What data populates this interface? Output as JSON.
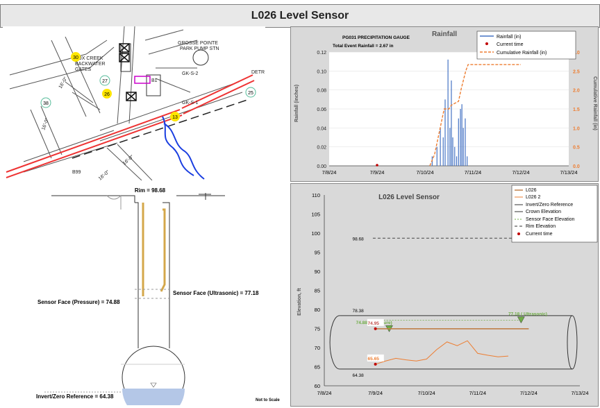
{
  "page_title": "L026 Level Sensor",
  "map": {
    "labels": {
      "fox_creek": "FOX CREEK",
      "backwater": "BACKWATER",
      "gates": "GATES",
      "grosse_pointe": "GROSSE POINTE",
      "park_pump_stn": "PARK PUMP STN",
      "gk_s2": "GK-S-2",
      "gk_s1": "GK-S-1",
      "b1": "B1",
      "b99": "B99",
      "detr": "DETR",
      "pipe16a": "16'-0\"",
      "pipe16b": "16'-0\"",
      "pipe16c": "16'-0\"",
      "pipe16d": "16'-0\""
    },
    "markers": [
      "30",
      "27",
      "26",
      "13",
      "38",
      "25"
    ]
  },
  "diagram": {
    "rim": "Rim = 98.68",
    "sensor_pressure": "Sensor Face (Pressure) = 74.88",
    "sensor_ultrasonic": "Sensor Face (Ultrasonic) = 77.18",
    "invert": "Invert/Zero Reference = 64.38",
    "not_to_scale": "Not to Scale"
  },
  "rain_chart": {
    "title": "Rainfall",
    "gauge_title": "PG031 PRECIPITATION GAUGE",
    "total_text": "Total Event Rainfall = 2.67 in",
    "ylabel": "Rainfall (inches)",
    "y2label": "Cumulative Rainfall (in)",
    "xlabels": [
      "7/8/24",
      "7/9/24",
      "7/10/24",
      "7/11/24",
      "7/12/24",
      "7/13/24"
    ],
    "yticks": [
      "0.00",
      "0.02",
      "0.04",
      "0.06",
      "0.08",
      "0.10",
      "0.12"
    ],
    "y2ticks": [
      "0.0",
      "0.5",
      "1.0",
      "1.5",
      "2.0",
      "2.5",
      "3.0"
    ],
    "legend": [
      "Rainfall (in)",
      "Current time",
      "Cumulative Rainfall (in)"
    ],
    "colors": {
      "rain": "#4472c4",
      "cumulative": "#ed7d31",
      "current": "#c00000"
    }
  },
  "level_chart": {
    "title": "L026 Level Sensor",
    "ylabel": "Elevation, ft",
    "xlabels": [
      "7/8/24",
      "7/9/24",
      "7/10/24",
      "7/11/24",
      "7/12/24",
      "7/13/24"
    ],
    "yticks": [
      "60",
      "65",
      "70",
      "75",
      "80",
      "85",
      "90",
      "95",
      "100",
      "105",
      "110"
    ],
    "legend": [
      "L026",
      "L026 2",
      "Invert/Zero Reference",
      "Crown Elevation",
      "Sensor Face Elevation",
      "Rim Elevation",
      "Current time"
    ],
    "annotations": {
      "rim": "98.68",
      "crown": "78.38",
      "invert": "64.38",
      "pressure": "74.88 ( Pressure)",
      "ultrasonic": "77.18 ( Ultrasonic)",
      "current_l026": "74.95",
      "current_l026_2": "65.65"
    },
    "colors": {
      "l026": "#c0804a",
      "l026_2": "#ed7d31",
      "sensor": "#70ad47",
      "current": "#c00000"
    }
  },
  "chart_data": [
    {
      "type": "bar",
      "title": "Rainfall",
      "xlabel": "",
      "ylabel": "Rainfall (inches)",
      "ylim": [
        0,
        0.12
      ],
      "y2lim": [
        0,
        3.0
      ],
      "x_range": [
        "7/8/24",
        "7/13/24"
      ],
      "series": [
        {
          "name": "Rainfall (in)",
          "x": [
            2.15,
            2.25,
            2.32,
            2.38,
            2.42,
            2.48,
            2.52,
            2.55,
            2.58,
            2.62,
            2.66,
            2.7,
            2.74,
            2.77,
            2.8,
            2.84,
            2.88
          ],
          "values": [
            0.01,
            0.02,
            0.04,
            0.03,
            0.07,
            0.112,
            0.04,
            0.09,
            0.03,
            0.02,
            0.01,
            0.05,
            0.06,
            0.065,
            0.04,
            0.05,
            0.01
          ]
        },
        {
          "name": "Cumulative Rainfall (in)",
          "x": [
            2.1,
            2.2,
            2.3,
            2.4,
            2.5,
            2.55,
            2.7,
            2.75,
            2.85,
            2.9,
            3.0,
            4.0
          ],
          "values": [
            0.0,
            0.3,
            0.9,
            1.5,
            1.5,
            1.6,
            1.7,
            2.0,
            2.5,
            2.67,
            2.67,
            2.67
          ]
        }
      ]
    },
    {
      "type": "line",
      "title": "L026 Level Sensor",
      "xlabel": "",
      "ylabel": "Elevation, ft",
      "ylim": [
        60,
        110
      ],
      "x_range": [
        "7/8/24",
        "7/13/24"
      ],
      "series": [
        {
          "name": "L026",
          "x": [
            1.0,
            4.0
          ],
          "values": [
            74.95,
            74.95
          ]
        },
        {
          "name": "L026 2",
          "x": [
            1.0,
            1.2,
            1.4,
            1.6,
            1.8,
            2.0,
            2.2,
            2.4,
            2.6,
            2.8,
            3.0,
            3.2,
            3.4,
            3.6
          ],
          "values": [
            65.65,
            66.5,
            67.2,
            66.8,
            66.5,
            67.0,
            69.5,
            71.5,
            70.5,
            71.8,
            68.5,
            68.0,
            67.6,
            67.8
          ]
        },
        {
          "name": "Invert/Zero Reference",
          "values": [
            64.38
          ]
        },
        {
          "name": "Crown Elevation",
          "values": [
            78.38
          ]
        },
        {
          "name": "Sensor Face Elevation",
          "values": [
            74.88,
            77.18
          ]
        },
        {
          "name": "Rim Elevation",
          "values": [
            98.68
          ]
        }
      ]
    }
  ]
}
